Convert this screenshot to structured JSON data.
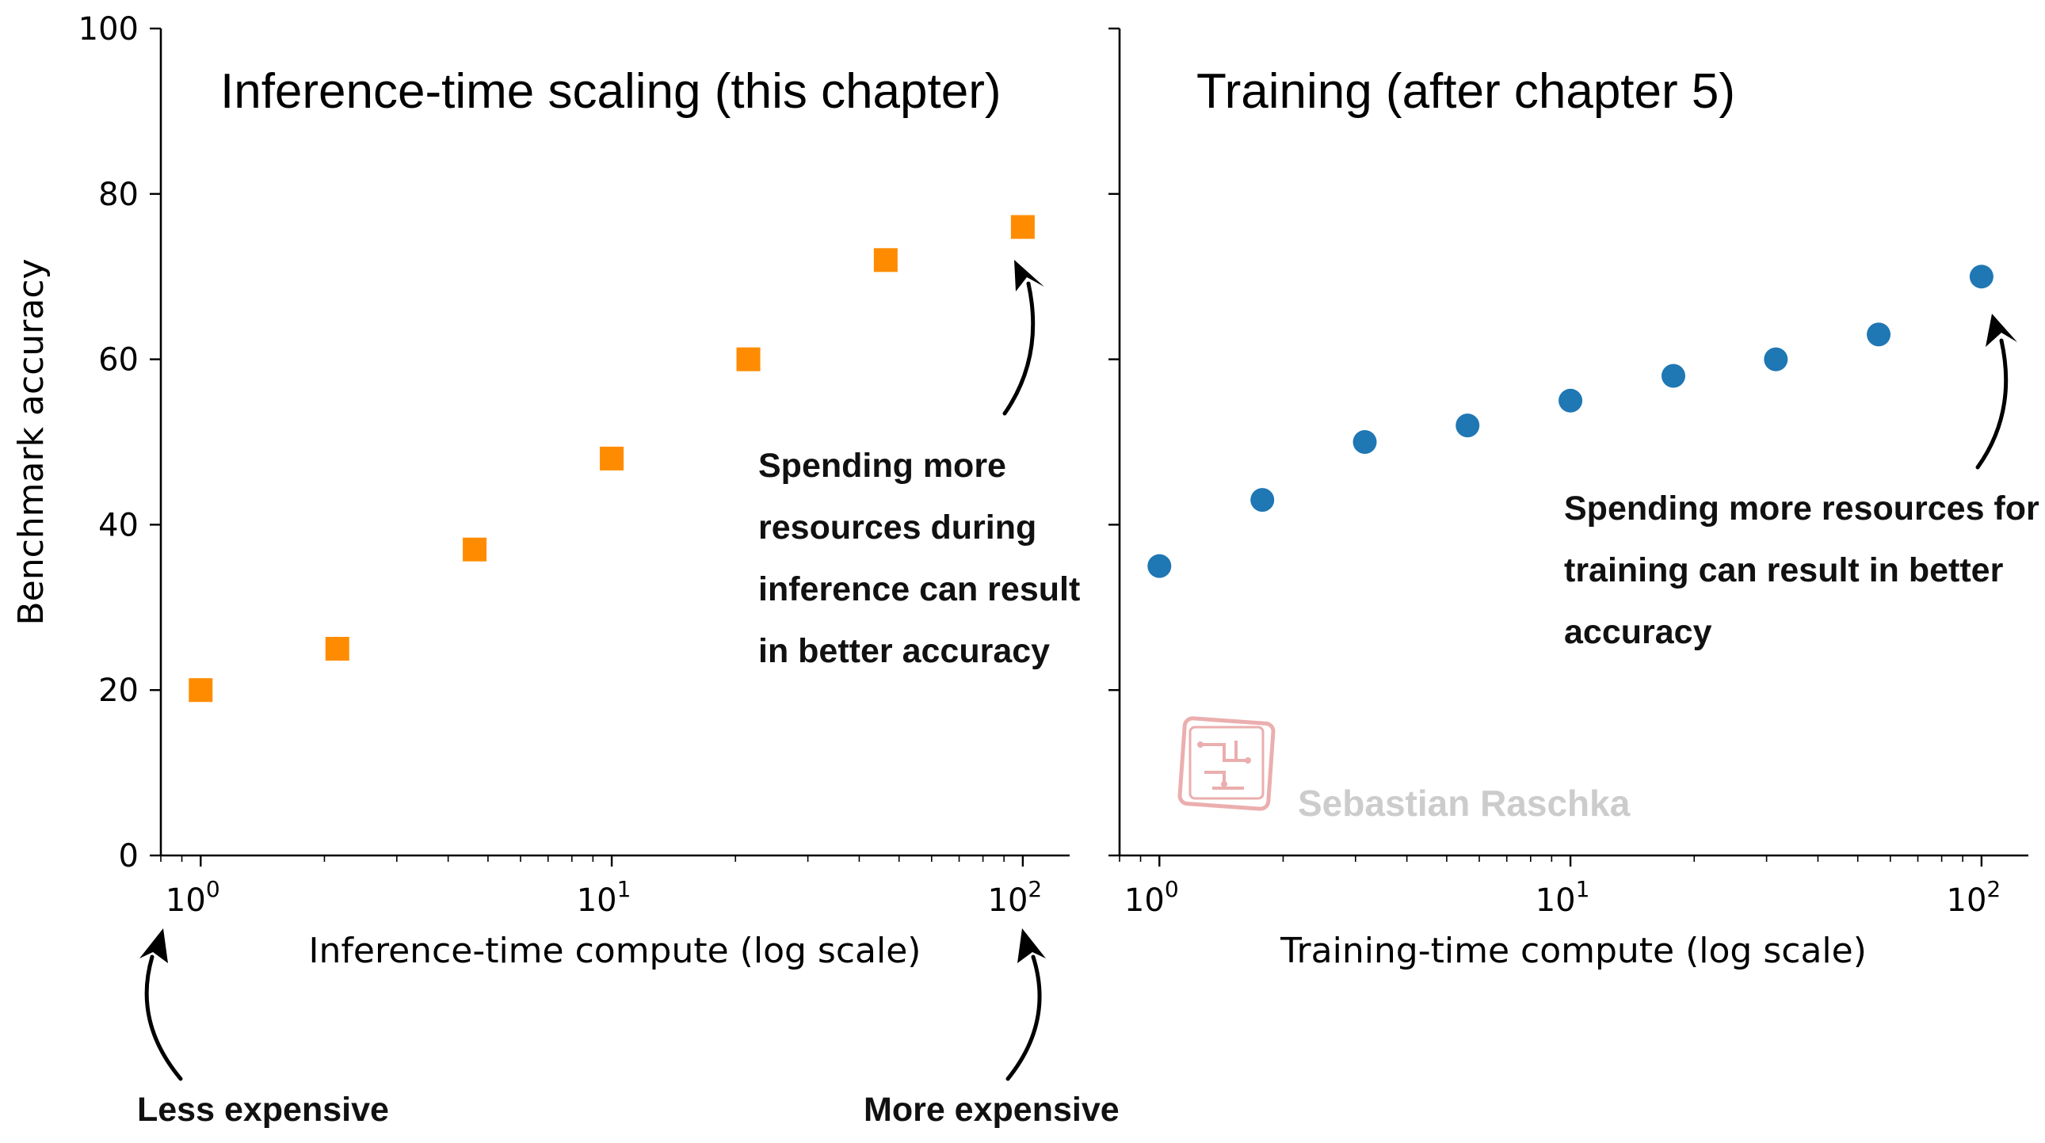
{
  "chart_data": [
    {
      "type": "scatter",
      "title": "Inference-time scaling (this chapter)",
      "xlabel": "Inference-time compute (log scale)",
      "ylabel": "Benchmark accuracy",
      "xscale": "log",
      "xlim": [
        0.8,
        130
      ],
      "ylim": [
        0,
        100
      ],
      "yticks": [
        0,
        20,
        40,
        60,
        80,
        100
      ],
      "xticks": [
        1,
        10,
        100
      ],
      "xtick_labels": [
        {
          "base": "10",
          "exp": "0"
        },
        {
          "base": "10",
          "exp": "1"
        },
        {
          "base": "10",
          "exp": "2"
        }
      ],
      "marker": "square",
      "color": "#ff8c00",
      "x": [
        1,
        2.15,
        4.64,
        10,
        21.5,
        46.4,
        100
      ],
      "y": [
        20,
        25,
        37,
        48,
        60,
        72,
        76
      ],
      "annotations": [
        {
          "lines": [
            "Spending more",
            "resources during",
            "inference can result",
            "in better accuracy"
          ]
        },
        {
          "lines": [
            "Less expensive"
          ]
        },
        {
          "lines": [
            "More expensive"
          ]
        }
      ]
    },
    {
      "type": "scatter",
      "title": "Training (after chapter 5)",
      "xlabel": "Training-time compute (log scale)",
      "xscale": "log",
      "xlim": [
        0.8,
        130
      ],
      "ylim": [
        0,
        100
      ],
      "xticks": [
        1,
        10,
        100
      ],
      "xtick_labels": [
        {
          "base": "10",
          "exp": "0"
        },
        {
          "base": "10",
          "exp": "1"
        },
        {
          "base": "10",
          "exp": "2"
        }
      ],
      "marker": "circle",
      "color": "#1f77b4",
      "x": [
        1,
        1.78,
        3.16,
        5.62,
        10,
        17.8,
        31.6,
        56.2,
        100
      ],
      "y": [
        35,
        43,
        50,
        52,
        55,
        58,
        60,
        63,
        70
      ],
      "annotations": [
        {
          "lines": [
            "Spending more resources for",
            "training can result in better",
            "accuracy"
          ]
        }
      ]
    }
  ],
  "watermark": {
    "text": "Sebastian Raschka",
    "icon": "circuit-stamp-icon",
    "color": "#e8a0a0"
  }
}
